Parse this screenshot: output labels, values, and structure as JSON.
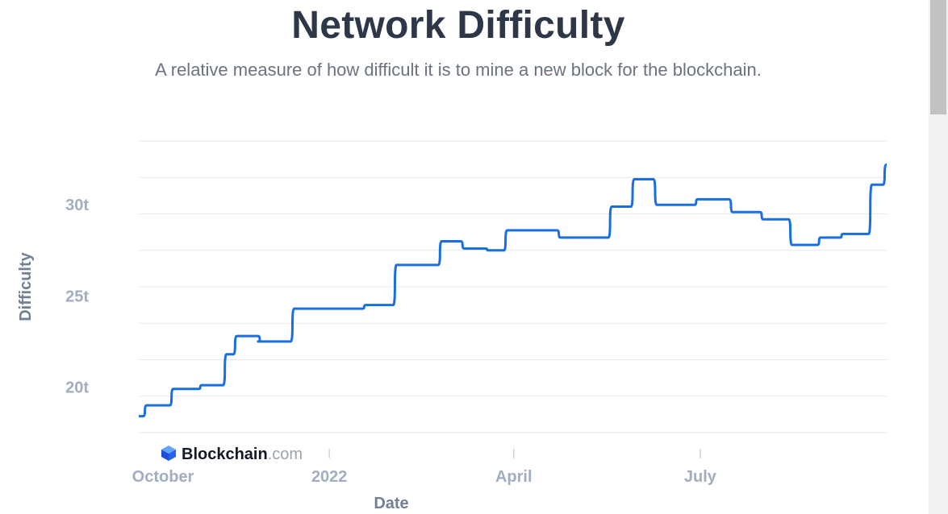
{
  "page": {
    "title": "Network Difficulty",
    "subtitle": "A relative measure of how difficult it is to mine a new block for the blockchain."
  },
  "brand": {
    "name": "Blockchain",
    "suffix": ".com"
  },
  "colors": {
    "line": "#1a6fe0",
    "grid": "#e5e7eb",
    "title": "#2d3748"
  },
  "chart_data": {
    "type": "line",
    "title": "Network Difficulty",
    "xlabel": "Date",
    "ylabel": "Difficulty",
    "xlim": [
      0,
      365
    ],
    "ylim": [
      17.5,
      33.5
    ],
    "yticks": [
      {
        "value": 20,
        "label": "20t"
      },
      {
        "value": 25,
        "label": "25t"
      },
      {
        "value": 30,
        "label": "30t"
      }
    ],
    "xticks": [
      {
        "value": 0,
        "label": "October"
      },
      {
        "value": 93,
        "label": "2022"
      },
      {
        "value": 183,
        "label": "April"
      },
      {
        "value": 274,
        "label": "July"
      }
    ],
    "series": [
      {
        "name": "Difficulty",
        "step_days": [
          0,
          3,
          16,
          30,
          42,
          47,
          59,
          57.2,
          75,
          100,
          110,
          125,
          131,
          147,
          158,
          170,
          179,
          184,
          205,
          230,
          241,
          252,
          272,
          289,
          304,
          318,
          332,
          343,
          357,
          364
        ],
        "values": [
          18.4,
          19.0,
          19.9,
          20.1,
          21.8,
          22.8,
          22.5,
          22.5,
          24.3,
          24.3,
          24.5,
          26.7,
          26.7,
          28.0,
          27.6,
          27.5,
          28.6,
          28.6,
          28.2,
          29.9,
          31.4,
          30.0,
          30.3,
          29.6,
          29.2,
          27.8,
          28.2,
          28.4,
          31.1,
          32.2
        ]
      }
    ]
  }
}
